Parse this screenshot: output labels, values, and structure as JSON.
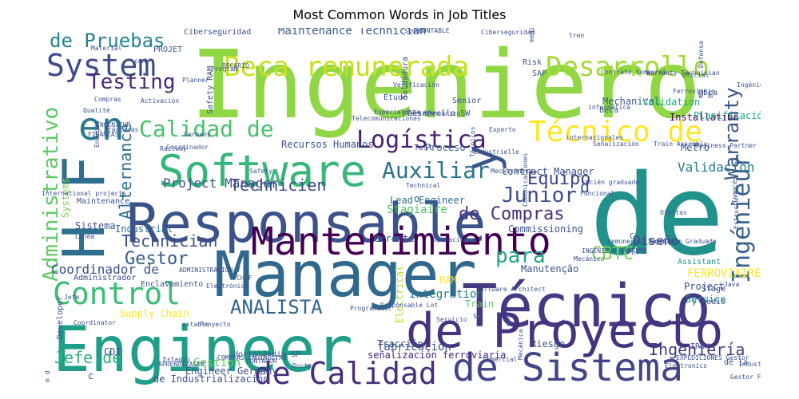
{
  "chart_data": {
    "type": "wordcloud",
    "title": "Most Common Words in Job Titles",
    "colormap": "viridis",
    "background": "#ffffff",
    "words": [
      {
        "text": "Ingeniero",
        "color": "#8fd744"
      },
      {
        "text": "de",
        "color": "#21918c"
      },
      {
        "text": "Engineer",
        "color": "#1f9e89"
      },
      {
        "text": "Manager",
        "color": "#31688e"
      },
      {
        "text": "Responsable",
        "color": "#3b528b"
      },
      {
        "text": "Técnico",
        "color": "#443983"
      },
      {
        "text": "de Proyecto",
        "color": "#46337f"
      },
      {
        "text": "Mantenimiento",
        "color": "#440154"
      },
      {
        "text": "de Sistema",
        "color": "#414487"
      },
      {
        "text": "Software",
        "color": "#35b779"
      },
      {
        "text": "H F",
        "color": "#2e6e8e"
      },
      {
        "text": "de Calidad",
        "color": "#472d7b"
      },
      {
        "text": "Beca remunerada",
        "color": "#c8e020"
      },
      {
        "text": "Desarrollo",
        "color": "#a2da37"
      },
      {
        "text": "Técnico de",
        "color": "#fde725"
      },
      {
        "text": "en",
        "color": "#2a788e"
      },
      {
        "text": "Control",
        "color": "#3dbc74"
      },
      {
        "text": "System",
        "color": "#3e4a89"
      },
      {
        "text": "y",
        "color": "#3b528b"
      },
      {
        "text": "Calidad de",
        "color": "#4ac16d"
      },
      {
        "text": "Logística",
        "color": "#481f70"
      },
      {
        "text": "Auxiliar",
        "color": "#2c728e"
      },
      {
        "text": "Testing",
        "color": "#482878"
      },
      {
        "text": "de Pruebas",
        "color": "#25848e"
      },
      {
        "text": "Junior",
        "color": "#3e4c8a"
      },
      {
        "text": "Ingénieur",
        "color": "#355f8d"
      },
      {
        "text": "Administrativo",
        "color": "#5ec962"
      },
      {
        "text": "para",
        "color": "#21a685"
      },
      {
        "text": "ANALISTA",
        "color": "#33638d"
      },
      {
        "text": "Gestor",
        "color": "#365c8d"
      },
      {
        "text": "Technician",
        "color": "#3d4e8a"
      },
      {
        "text": "de Compras",
        "color": "#46307e"
      },
      {
        "text": "Equipo",
        "color": "#414487"
      },
      {
        "text": "Warranty",
        "color": "#39558c"
      },
      {
        "text": "Ingeniería",
        "color": "#433e85"
      },
      {
        "text": "Jefe de",
        "color": "#2db27d"
      },
      {
        "text": "Alternance",
        "color": "#2e6f8e"
      },
      {
        "text": "Technicien",
        "color": "#3e4989"
      },
      {
        "text": "CBTC",
        "color": "#7ad151"
      },
      {
        "text": "Validación",
        "color": "#287c8e"
      },
      {
        "text": "Coordinador de",
        "color": "#3b528b"
      },
      {
        "text": "Project Manager",
        "color": "#3b528b"
      },
      {
        "text": "Maintenance Technician",
        "color": "#38588c"
      },
      {
        "text": "Industrial",
        "color": "#2d708e"
      },
      {
        "text": "Stagiaire",
        "color": "#52c569"
      },
      {
        "text": "Diseño",
        "color": "#3f4788"
      },
      {
        "text": "Mechanical",
        "color": "#39568c"
      },
      {
        "text": "Installation",
        "color": "#440154"
      },
      {
        "text": "Integration",
        "color": "#2a788e"
      },
      {
        "text": "Proceso",
        "color": "#34618d"
      },
      {
        "text": "Recursos Humanos",
        "color": "#3b528b"
      },
      {
        "text": "Validation",
        "color": "#22a884"
      },
      {
        "text": "Ciberseguridad",
        "color": "#3b528b"
      },
      {
        "text": "Contract Manager",
        "color": "#3b528b"
      },
      {
        "text": "Lead Engineer",
        "color": "#2c718e"
      },
      {
        "text": "Supply Chain",
        "color": "#fde725"
      },
      {
        "text": "Electrical",
        "color": "#b5de2b"
      },
      {
        "text": "fabricación",
        "color": "#3b528b"
      },
      {
        "text": "señalización ferroviaria",
        "color": "#482475"
      },
      {
        "text": "Tracción",
        "color": "#3b528b"
      },
      {
        "text": "Riesgo",
        "color": "#3b528b"
      },
      {
        "text": "de Industrialización",
        "color": "#3b528b"
      },
      {
        "text": "Engineer Germany",
        "color": "#3b528b"
      },
      {
        "text": "Gestion",
        "color": "#5ec962"
      },
      {
        "text": "Train",
        "color": "#5ec962"
      },
      {
        "text": "RAM",
        "color": "#fde725"
      },
      {
        "text": "Commissioning",
        "color": "#3b528b"
      },
      {
        "text": "FERROVIAIRE",
        "color": "#fde725"
      },
      {
        "text": "Project",
        "color": "#3b528b"
      },
      {
        "text": "Service",
        "color": "#21918c"
      },
      {
        "text": "Metro",
        "color": "#3b528b"
      },
      {
        "text": "Planificación",
        "color": "#22a884"
      },
      {
        "text": "Gerente",
        "color": "#3b528b"
      },
      {
        "text": "Manutenção",
        "color": "#3b528b"
      },
      {
        "text": "Maintenance",
        "color": "#3b528b"
      },
      {
        "text": "Systems",
        "color": "#7ad151"
      },
      {
        "text": "Sistema",
        "color": "#3b528b"
      },
      {
        "text": "Enclavamiento",
        "color": "#3b528b"
      },
      {
        "text": "Administrador",
        "color": "#3b528b"
      },
      {
        "text": "Developer",
        "color": "#3b528b"
      },
      {
        "text": "Hortolândia SP",
        "color": "#3b528b"
      },
      {
        "text": "Coordinator",
        "color": "#3b528b"
      },
      {
        "text": "Test",
        "color": "#3b528b"
      },
      {
        "text": "Senior",
        "color": "#3b528b"
      },
      {
        "text": "Etude",
        "color": "#3b528b"
      },
      {
        "text": "Soldadura",
        "color": "#3b528b"
      },
      {
        "text": "Beca",
        "color": "#3b528b"
      },
      {
        "text": "Obra",
        "color": "#3b528b"
      },
      {
        "text": "Risk",
        "color": "#3b528b"
      },
      {
        "text": "SAP",
        "color": "#3b528b"
      },
      {
        "text": "Planner",
        "color": "#3b528b"
      },
      {
        "text": "Program",
        "color": "#3b528b"
      },
      {
        "text": "PROJET",
        "color": "#3b528b"
      },
      {
        "text": "Material",
        "color": "#3b528b"
      },
      {
        "text": "sedes",
        "color": "#3b528b"
      },
      {
        "text": "CONTABLE",
        "color": "#3b528b"
      },
      {
        "text": "Safety RAM",
        "color": "#3b528b"
      },
      {
        "text": "Experto",
        "color": "#3b528b"
      },
      {
        "text": "Técnicos",
        "color": "#3b528b"
      },
      {
        "text": "Desarrollo SW",
        "color": "#3b528b"
      },
      {
        "text": "Comercial",
        "color": "#3b528b"
      },
      {
        "text": "Electronics",
        "color": "#3b528b"
      },
      {
        "text": "IRUN",
        "color": "#3b528b"
      },
      {
        "text": "de la",
        "color": "#3b528b"
      },
      {
        "text": "Assistant",
        "color": "#21918c"
      },
      {
        "text": "Stage",
        "color": "#3b528b"
      },
      {
        "text": "y medio",
        "color": "#3b528b"
      },
      {
        "text": "Java",
        "color": "#3b528b"
      },
      {
        "text": "Mecánico",
        "color": "#3b528b"
      },
      {
        "text": "fin",
        "color": "#3b528b"
      },
      {
        "text": "SW",
        "color": "#3b528b"
      },
      {
        "text": "Servicio",
        "color": "#3b528b"
      },
      {
        "text": "Programador",
        "color": "#3b528b"
      },
      {
        "text": "Responsable Lot",
        "color": "#3b528b"
      },
      {
        "text": "Operación y",
        "color": "#3b528b"
      },
      {
        "text": "Comunicaciones",
        "color": "#3b528b"
      },
      {
        "text": "Funcional",
        "color": "#3b528b"
      },
      {
        "text": "Oficial",
        "color": "#3b528b"
      },
      {
        "text": "Ferroviario",
        "color": "#3b528b"
      },
      {
        "text": "Coordinador",
        "color": "#3b528b"
      },
      {
        "text": "Energía",
        "color": "#3b528b"
      },
      {
        "text": "Railway",
        "color": "#3b528b"
      },
      {
        "text": "Germany",
        "color": "#3b528b"
      },
      {
        "text": "FINANZAS",
        "color": "#3b528b"
      },
      {
        "text": "Prácticas",
        "color": "#3b528b"
      },
      {
        "text": "Qualité",
        "color": "#3b528b"
      },
      {
        "text": "Activación",
        "color": "#3b528b"
      },
      {
        "text": "Compras",
        "color": "#3b528b"
      },
      {
        "text": "Especialista en",
        "color": "#3b528b"
      },
      {
        "text": "Telecomunicaciones",
        "color": "#3b528b"
      },
      {
        "text": "internacionales",
        "color": "#3b528b"
      },
      {
        "text": "Señalización",
        "color": "#3b528b"
      },
      {
        "text": "Train Assembly",
        "color": "#3b528b"
      },
      {
        "text": "Business Partner",
        "color": "#3b528b"
      },
      {
        "text": "Industrielle",
        "color": "#3b528b"
      },
      {
        "text": "Mecatrónica",
        "color": "#3b528b"
      },
      {
        "text": "Technical",
        "color": "#3b528b"
      },
      {
        "text": "Safety",
        "color": "#3b528b"
      },
      {
        "text": "International projects",
        "color": "#3b528b"
      },
      {
        "text": "Línea",
        "color": "#3b528b"
      },
      {
        "text": "ADMINISTRACIÓN Y",
        "color": "#3b528b"
      },
      {
        "text": "Electrónico",
        "color": "#3b528b"
      },
      {
        "text": "estable",
        "color": "#3b528b"
      },
      {
        "text": "CHEF",
        "color": "#3b528b"
      },
      {
        "text": "Doctor",
        "color": "#3b528b"
      },
      {
        "text": "Software Architect",
        "color": "#3b528b"
      },
      {
        "text": "Ofertas",
        "color": "#3b528b"
      },
      {
        "text": "francés",
        "color": "#3b528b"
      },
      {
        "text": "Estructuras",
        "color": "#3b528b"
      },
      {
        "text": "Ingeniero Graduado",
        "color": "#3b528b"
      },
      {
        "text": "remunerada Graduado",
        "color": "#3b528b"
      },
      {
        "text": "INGÉNIEUR SYSTÈME",
        "color": "#3b528b"
      },
      {
        "text": "recién graduado",
        "color": "#3b528b"
      },
      {
        "text": "EXPEDICIONES Gestor",
        "color": "#3b528b"
      },
      {
        "text": "Industrial",
        "color": "#3b528b"
      },
      {
        "text": "Gestor Ferroviaria",
        "color": "#3b528b"
      },
      {
        "text": "Ingénieur",
        "color": "#3b528b"
      },
      {
        "text": "Defensa",
        "color": "#3b528b"
      },
      {
        "text": "Ciberseguridad",
        "color": "#3b528b"
      },
      {
        "text": "tren",
        "color": "#3b528b"
      },
      {
        "text": "Contrato temporal",
        "color": "#3b528b"
      },
      {
        "text": "medio ambiente",
        "color": "#3b528b"
      },
      {
        "text": "con",
        "color": "#3b528b"
      },
      {
        "text": "INGENIEUR",
        "color": "#3b528b"
      },
      {
        "text": "BECARIO",
        "color": "#3b528b"
      },
      {
        "text": "Verificación",
        "color": "#3b528b"
      },
      {
        "text": "Electromecánico",
        "color": "#3b528b"
      },
      {
        "text": "informática",
        "color": "#3b528b"
      },
      {
        "text": "und",
        "color": "#3b528b"
      },
      {
        "text": "Mecánica",
        "color": "#3b528b"
      },
      {
        "text": "Jefe",
        "color": "#3b528b"
      },
      {
        "text": "Proyecto",
        "color": "#3b528b"
      },
      {
        "text": "Estagio",
        "color": "#3b528b"
      },
      {
        "text": "COMPRAS INDIRECTAS",
        "color": "#3b528b"
      },
      {
        "text": "APRENDIZAGEM",
        "color": "#3b528b"
      },
      {
        "text": "CONTADOR",
        "color": "#3b528b"
      },
      {
        "text": "CDI",
        "color": "#3b528b"
      },
      {
        "text": "C",
        "color": "#3b528b"
      },
      {
        "text": "c",
        "color": "#3b528b"
      },
      {
        "text": "d",
        "color": "#3b528b"
      },
      {
        "text": "o",
        "color": "#3b528b"
      },
      {
        "text": "w m",
        "color": "#3b528b"
      },
      {
        "text": "m d",
        "color": "#3b528b"
      },
      {
        "text": "Warranty Technician",
        "color": "#3b528b"
      }
    ]
  }
}
